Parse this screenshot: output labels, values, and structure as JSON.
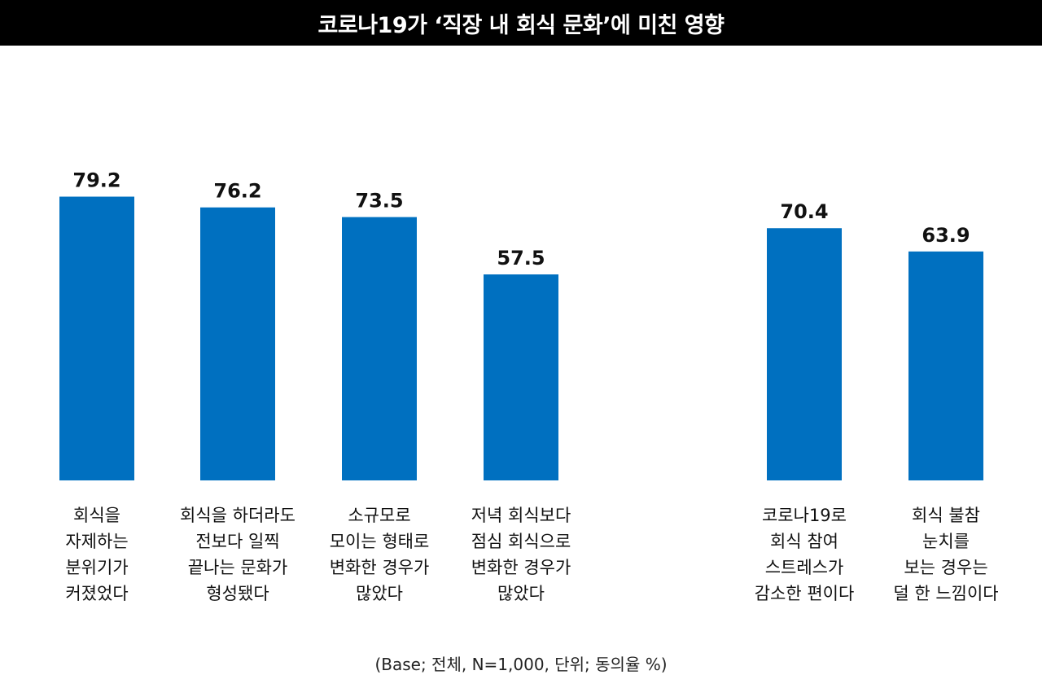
{
  "title": "코로나19가 ‘직장 내 회식 문화’에 미친 영향",
  "footnote": "(Base; 전체, N=1,000, 단위; 동의율 %)",
  "colors": {
    "bar": "#0070C0",
    "title_bg": "#000000",
    "title_text": "#FFFFFF"
  },
  "chart_data": {
    "type": "bar",
    "title": "코로나19가 ‘직장 내 회식 문화’에 미친 영향",
    "xlabel": "",
    "ylabel": "",
    "unit": "%",
    "ylim": [
      0,
      100
    ],
    "grid": false,
    "groups": [
      {
        "categories": [
          0,
          1,
          2,
          3
        ]
      },
      {
        "categories": [
          4,
          5
        ]
      }
    ],
    "categories": [
      "회식을\n자제하는\n분위기가\n커졌었다",
      "회식을 하더라도\n전보다 일찍\n끝나는 문화가\n형성됐다",
      "소규모로\n모이는 형태로\n변화한 경우가\n많았다",
      "저녁 회식보다\n점심 회식으로\n변화한 경우가\n많았다",
      "코로나19로\n회식 참여\n스트레스가\n감소한 편이다",
      "회식 불참\n눈치를\n보는 경우는\n덜 한 느낌이다"
    ],
    "values": [
      79.2,
      76.2,
      73.5,
      57.5,
      70.4,
      63.9
    ],
    "value_labels": [
      "79.2",
      "76.2",
      "73.5",
      "57.5",
      "70.4",
      "63.9"
    ]
  }
}
